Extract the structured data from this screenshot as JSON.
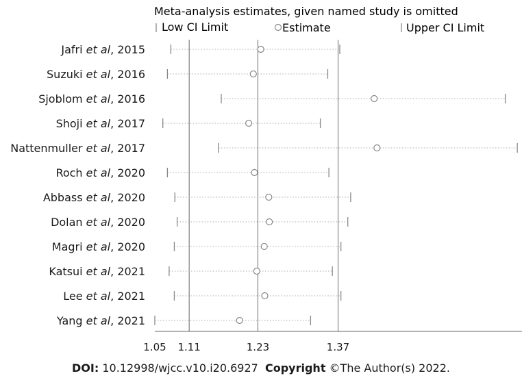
{
  "chart_data": {
    "type": "forest",
    "title": "Meta-analysis estimates, given named study is omitted",
    "legend": {
      "low": "Low CI Limit",
      "estimate": "Estimate",
      "upper": "Upper CI Limit",
      "placement": "top"
    },
    "x_ticks": [
      1.05,
      1.11,
      1.23,
      1.37
    ],
    "x_tick_labels": [
      "1.05",
      "1.11",
      "1.23",
      "1.37"
    ],
    "xlim": [
      1.05,
      1.69
    ],
    "reference_lines": [
      1.11,
      1.23,
      1.37
    ],
    "studies": [
      {
        "author": "Jafri",
        "etal": "et al",
        "year": ", 2015",
        "low": 1.078,
        "est": 1.235,
        "upper": 1.373
      },
      {
        "author": "Suzuki",
        "etal": "et al",
        "year": ", 2016",
        "low": 1.072,
        "est": 1.222,
        "upper": 1.352
      },
      {
        "author": "Sjoblom",
        "etal": "et al",
        "year": ", 2016",
        "low": 1.166,
        "est": 1.433,
        "upper": 1.662
      },
      {
        "author": "Shoji",
        "etal": "et al",
        "year": ", 2017",
        "low": 1.064,
        "est": 1.214,
        "upper": 1.339
      },
      {
        "author": "Nattenmuller",
        "etal": "et al",
        "year": ", 2017",
        "low": 1.161,
        "est": 1.438,
        "upper": 1.683
      },
      {
        "author": "Roch",
        "etal": "et al",
        "year": ", 2020",
        "low": 1.072,
        "est": 1.224,
        "upper": 1.354
      },
      {
        "author": "Abbass",
        "etal": "et al",
        "year": ", 2020",
        "low": 1.085,
        "est": 1.249,
        "upper": 1.392
      },
      {
        "author": "Dolan",
        "etal": "et al",
        "year": ", 2020",
        "low": 1.089,
        "est": 1.25,
        "upper": 1.387
      },
      {
        "author": "Magri",
        "etal": "et al",
        "year": ", 2020",
        "low": 1.084,
        "est": 1.241,
        "upper": 1.375
      },
      {
        "author": "Katsui",
        "etal": "et al",
        "year": ", 2021",
        "low": 1.075,
        "est": 1.228,
        "upper": 1.36
      },
      {
        "author": "Lee",
        "etal": "et al",
        "year": ", 2021",
        "low": 1.084,
        "est": 1.242,
        "upper": 1.375
      },
      {
        "author": "Yang",
        "etal": "et al",
        "year": ", 2021",
        "low": 1.05,
        "est": 1.198,
        "upper": 1.322
      }
    ]
  },
  "footer": {
    "doi_label": "DOI:",
    "doi_value": " 10.12998/wjcc.v10.i20.6927",
    "copyright_label": "Copyright",
    "copyright_value": " ©The Author(s) 2022."
  },
  "colors": {
    "ink": "#1a1a1a",
    "lines": "#666666",
    "dots": "#aaaaaa",
    "marker": "#888888"
  }
}
